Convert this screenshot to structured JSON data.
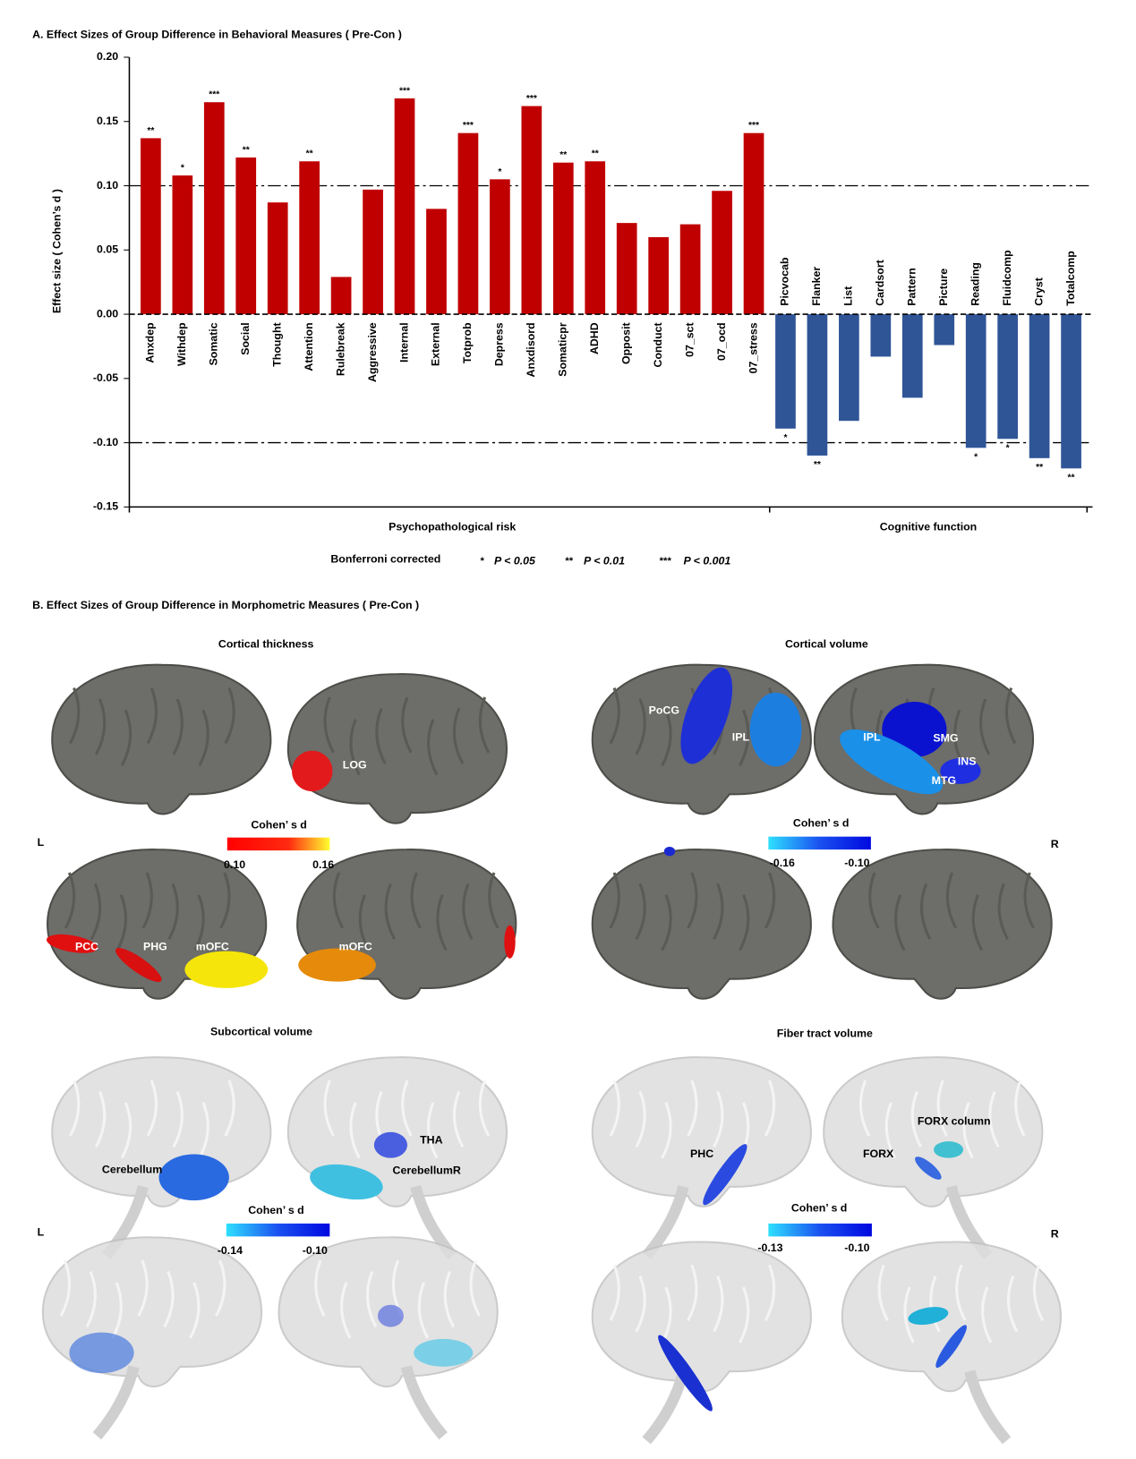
{
  "chart_data": {
    "type": "bar",
    "title": "A. Effect Sizes of Group Difference in Behavioral Measures ( Pre-Con )",
    "y_label": "Effect size ( Cohen’s d )",
    "ylim": [
      -0.15,
      0.2
    ],
    "yticks": [
      {
        "value": 0.2,
        "label": "0.20"
      },
      0.15,
      {
        "value": 0.1,
        "label": "0.10"
      },
      0.05,
      {
        "value": 0,
        "label": "0.00"
      },
      -0.05,
      {
        "value": -0.1,
        "label": "-0.10"
      },
      -0.15
    ],
    "reference_lines": [
      0.1,
      -0.1
    ],
    "series": [
      {
        "name": "Psychopathological risk",
        "color": "#c00000",
        "categories": [
          "Anxdep",
          "Withdep",
          "Somatic",
          "Social",
          "Thought",
          "Attention",
          "Rulebreak",
          "Aggressive",
          "Internal",
          "External",
          "Totprob",
          "Depress",
          "Anxdisord",
          "Somaticpr",
          "ADHD",
          "Opposit",
          "Conduct",
          "07_sct",
          "07_ocd",
          "07_stress"
        ],
        "values": [
          0.137,
          0.108,
          0.165,
          0.122,
          0.087,
          0.119,
          0.029,
          0.097,
          0.168,
          0.082,
          0.141,
          0.105,
          0.162,
          0.118,
          0.119,
          0.071,
          0.06,
          0.07,
          0.096,
          0.141
        ],
        "significance": [
          "**",
          "*",
          "***",
          "**",
          null,
          "**",
          null,
          null,
          "***",
          null,
          "***",
          "*",
          "***",
          "**",
          "**",
          null,
          null,
          null,
          null,
          "***"
        ]
      },
      {
        "name": "Cognitive function",
        "color": "#2f5597",
        "categories": [
          "Picvocab",
          "Flanker",
          "List",
          "Cardsort",
          "Pattern",
          "Picture",
          "Reading",
          "Fluidcomp",
          "Cryst",
          "Totalcomp"
        ],
        "values": [
          -0.089,
          -0.11,
          -0.083,
          -0.033,
          -0.065,
          -0.024,
          -0.104,
          -0.097,
          -0.112,
          -0.12
        ],
        "significance": [
          "*",
          "**",
          null,
          null,
          null,
          null,
          "*",
          "*",
          "**",
          "**"
        ]
      }
    ],
    "note": "Bonferroni corrected",
    "significance_legend": [
      {
        "symbol": "*",
        "text": "P < 0.05"
      },
      {
        "symbol": "**",
        "text": "P < 0.01"
      },
      {
        "symbol": "***",
        "text": "P < 0.001"
      }
    ]
  },
  "panel_b": {
    "title": "B. Effect Sizes of Group Difference in Morphometric Measures ( Pre-Con )",
    "hemisphere_labels": [
      {
        "left": "L",
        "right": "R"
      },
      {
        "left": "L",
        "right": "R"
      }
    ],
    "panels": [
      {
        "title": "Cortical thickness",
        "colorbar": {
          "label": "Cohen’ s d",
          "min": "0.10",
          "max": "0.16"
        },
        "regions": [
          "LOG",
          "PCC",
          "PHG",
          "mOFC",
          "mOFC"
        ]
      },
      {
        "title": "Cortical volume",
        "colorbar": {
          "label": "Cohen’ s d",
          "min": "-0.16",
          "max": "-0.10"
        },
        "regions": [
          "PoCG",
          "IPL",
          "IPL",
          "SMG",
          "INS",
          "MTG"
        ]
      },
      {
        "title": "Subcortical volume",
        "colorbar": {
          "label": "Cohen’ s d",
          "min": "-0.14",
          "max": "-0.10"
        },
        "regions": [
          "Cerebellum",
          "THA",
          "CerebellumR"
        ]
      },
      {
        "title": "Fiber tract volume",
        "colorbar": {
          "label": "Cohen’ s d",
          "min": "-0.13",
          "max": "-0.10"
        },
        "regions": [
          "PHC",
          "FORX column",
          "FORX"
        ]
      }
    ]
  }
}
